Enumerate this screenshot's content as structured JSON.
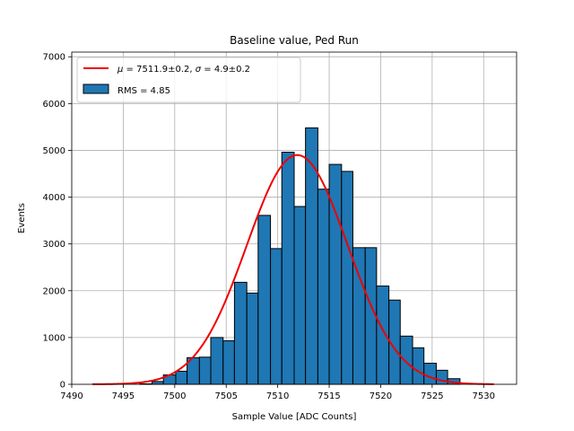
{
  "chart_data": {
    "type": "bar",
    "title": "Baseline value, Ped Run",
    "xlabel": "Sample Value [ADC Counts]",
    "ylabel": "Events",
    "xlim": [
      7490,
      7533.2
    ],
    "ylim": [
      0,
      7100
    ],
    "xticks": [
      7490,
      7495,
      7500,
      7505,
      7510,
      7515,
      7520,
      7525,
      7530
    ],
    "yticks": [
      0,
      1000,
      2000,
      3000,
      4000,
      5000,
      6000,
      7000
    ],
    "grid": true,
    "legend_position": "top-left",
    "bin_edges": [
      7496.6,
      7497.8,
      7498.9,
      7500.1,
      7501.2,
      7502.4,
      7503.5,
      7504.7,
      7505.8,
      7507.0,
      7508.1,
      7509.3,
      7510.4,
      7511.6,
      7512.7,
      7513.9,
      7515.0,
      7516.2,
      7517.3,
      7518.5,
      7519.6,
      7520.8,
      7521.9,
      7523.1,
      7524.2,
      7525.4,
      7526.5,
      7527.7
    ],
    "counts": [
      10,
      60,
      200,
      280,
      570,
      580,
      1000,
      930,
      2180,
      1950,
      3610,
      2900,
      4960,
      3800,
      5480,
      4170,
      4700,
      4550,
      2920,
      2920,
      2100,
      1800,
      1030,
      780,
      450,
      300,
      120
    ],
    "series": [
      {
        "name": "RMS = 4.85",
        "kind": "histogram",
        "color": "#1f77b4",
        "edgecolor": "#000000"
      },
      {
        "name": "$\\mu = 7511.9\\pm0.2$, $\\sigma = 4.9\\pm0.2$",
        "kind": "gaussian-fit",
        "color": "#ee0000",
        "mu": 7511.9,
        "sigma": 4.9,
        "amplitude": 4900,
        "x_range": [
          7492,
          7531
        ]
      }
    ]
  },
  "legend": {
    "fit_label_mu": "μ",
    "fit_label_rest1": " = 7511.9±0.2, ",
    "fit_label_sigma": "σ",
    "fit_label_rest2": " = 4.9±0.2",
    "hist_label": "RMS = 4.85"
  }
}
